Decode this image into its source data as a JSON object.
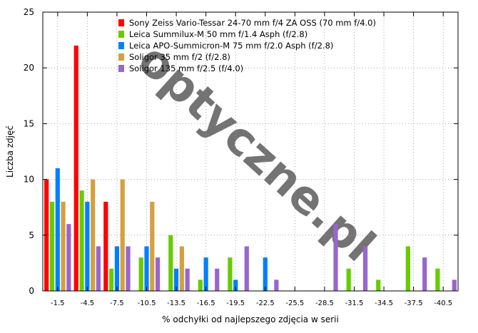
{
  "chart_data": {
    "type": "bar",
    "xlabel": "% odchyłki od najlepszego zdjęcia w serii",
    "ylabel": "Liczba zdjęć",
    "ylim": [
      0,
      25
    ],
    "yticks": [
      0,
      5,
      10,
      15,
      20,
      25
    ],
    "grid": true,
    "legend_position": "top-center",
    "watermark": "optyczne.pl",
    "categories": [
      "-1.5",
      "-4.5",
      "-7.5",
      "-10.5",
      "-13.5",
      "-16.5",
      "-19.5",
      "-22.5",
      "-25.5",
      "-28.5",
      "-31.5",
      "-34.5",
      "-37.5",
      "-40.5"
    ],
    "series": [
      {
        "name": "Sony Zeiss Vario-Tessar 24-70 mm f/4 ZA OSS (70 mm f/4.0)",
        "color": "#ff0000",
        "values": [
          10,
          22,
          8,
          0,
          0,
          0,
          0,
          0,
          0,
          0,
          0,
          0,
          0,
          0
        ]
      },
      {
        "name": "Leica Summilux-M 50 mm f/1.4 Asph (f/2.8)",
        "color": "#66cc00",
        "values": [
          8,
          9,
          2,
          3,
          5,
          1,
          3,
          0,
          0,
          0,
          2,
          1,
          4,
          2
        ]
      },
      {
        "name": "Leica APO-Summicron-M 75 mm f/2.0 Asph (f/2.8)",
        "color": "#0080ff",
        "values": [
          11,
          8,
          4,
          4,
          2,
          3,
          1,
          3,
          0,
          0,
          0,
          0,
          0,
          0
        ]
      },
      {
        "name": "Soligor 35 mm f/2 (f/2.8)",
        "color": "#d4a040",
        "values": [
          8,
          10,
          10,
          8,
          4,
          0,
          0,
          0,
          0,
          0,
          0,
          0,
          0,
          0
        ]
      },
      {
        "name": "Soligor 135 mm f/2.5 (f/4.0)",
        "color": "#9966cc",
        "values": [
          6,
          4,
          4,
          3,
          2,
          2,
          4,
          1,
          0,
          6,
          4,
          0,
          3,
          1
        ]
      }
    ]
  }
}
